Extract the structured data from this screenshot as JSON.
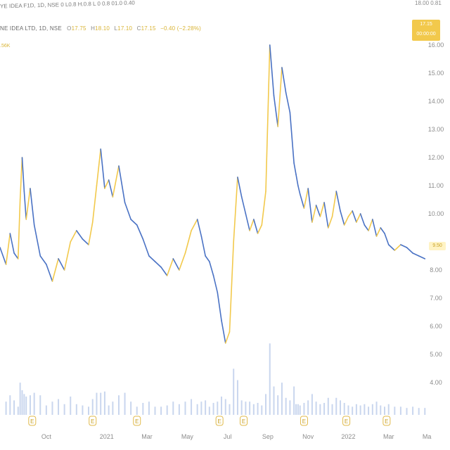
{
  "legend": {
    "symbol": "NE IDEA LTD, 1D, NSE",
    "open_label": "O",
    "open": "17.75",
    "high_label": "H",
    "high": "18.10",
    "low_label": "L",
    "low": "17.10",
    "close_label": "C",
    "close": "17.15",
    "change": "−0.40 (−2.28%)",
    "sub": ".56K"
  },
  "top_strip": "YE IDEA F1D, 1D, NSE 0 L0.8 H.0.8 L 0 0.8 01.0 0.40",
  "top_price": "18.00 0.81",
  "price_badge": {
    "line1": "17.15",
    "line2": "00:00:00"
  },
  "last_badge": "9.50",
  "colors": {
    "up": "#f2c94c",
    "down": "#4a72c4",
    "volume": "#c9d6ee",
    "axis_text": "#8c8c8c"
  },
  "chart_data": {
    "type": "line",
    "title": "",
    "xlabel": "",
    "ylabel": "",
    "ylim": [
      3.6,
      16.6
    ],
    "y_ticks": [
      {
        "value": 16,
        "label": "16.00"
      },
      {
        "value": 15,
        "label": "15.00"
      },
      {
        "value": 14,
        "label": "14.00"
      },
      {
        "value": 13,
        "label": "13.00"
      },
      {
        "value": 12,
        "label": "12.00"
      },
      {
        "value": 11,
        "label": "11.00"
      },
      {
        "value": 10,
        "label": "10.00"
      },
      {
        "value": 8,
        "label": "8.00"
      },
      {
        "value": 7,
        "label": "7.00"
      },
      {
        "value": 6,
        "label": "6.00"
      },
      {
        "value": 5,
        "label": "5.00"
      },
      {
        "value": 4,
        "label": "4.00"
      }
    ],
    "x_ticks": [
      {
        "label": "Oct",
        "at": 1.0
      },
      {
        "label": "2021",
        "at": 4.0
      },
      {
        "label": "Mar",
        "at": 6.0
      },
      {
        "label": "May",
        "at": 8.0
      },
      {
        "label": "Jul",
        "at": 10.0
      },
      {
        "label": "Sep",
        "at": 12.0
      },
      {
        "label": "Nov",
        "at": 14.0
      },
      {
        "label": "2022",
        "at": 16.0
      },
      {
        "label": "Mar",
        "at": 18.0
      },
      {
        "label": "Ma",
        "at": 19.9
      }
    ],
    "x_range": [
      -1.3,
      20.0
    ],
    "events": [
      0.3,
      3.3,
      5.5,
      9.6,
      10.8,
      13.8,
      15.9,
      17.9
    ],
    "event_label": "E",
    "series": [
      {
        "x": [
          -1.3,
          -1.0,
          -0.8,
          -0.6,
          -0.4,
          -0.3,
          -0.2,
          -0.1,
          0.0,
          0.2,
          0.4,
          0.7,
          1.0,
          1.3,
          1.6,
          1.9,
          2.2,
          2.5,
          2.8,
          3.1,
          3.3,
          3.5,
          3.7,
          3.9,
          4.1,
          4.3,
          4.6,
          4.9,
          5.2,
          5.5,
          5.8,
          6.1,
          6.4,
          6.7,
          7.0,
          7.3,
          7.6,
          7.9,
          8.2,
          8.5,
          8.7,
          8.9,
          9.1,
          9.3,
          9.5,
          9.7,
          9.9,
          10.1,
          10.3,
          10.5,
          10.7,
          10.9,
          11.1,
          11.3,
          11.5,
          11.7,
          11.9,
          12.1,
          12.3,
          12.5,
          12.7,
          12.9,
          13.1,
          13.3,
          13.4,
          13.5,
          13.6,
          13.8,
          14.0,
          14.2,
          14.4,
          14.6,
          14.8,
          15.0,
          15.2,
          15.4,
          15.6,
          15.8,
          16.0,
          16.2,
          16.4,
          16.6,
          16.8,
          17.0,
          17.2,
          17.4,
          17.6,
          17.8,
          18.0,
          18.3,
          18.6,
          18.9,
          19.2,
          19.5,
          19.8
        ],
        "values": [
          8.8,
          8.2,
          9.3,
          8.6,
          8.4,
          10.5,
          12.0,
          10.8,
          9.8,
          10.9,
          9.6,
          8.5,
          8.2,
          7.6,
          8.4,
          8.0,
          9.0,
          9.4,
          9.1,
          8.9,
          9.7,
          11.0,
          12.3,
          10.9,
          11.2,
          10.6,
          11.7,
          10.4,
          9.8,
          9.6,
          9.1,
          8.5,
          8.3,
          8.1,
          7.8,
          8.4,
          8.0,
          8.6,
          9.4,
          9.8,
          9.2,
          8.5,
          8.3,
          7.8,
          7.2,
          6.2,
          5.4,
          5.8,
          9.0,
          11.3,
          10.6,
          10.0,
          9.4,
          9.8,
          9.3,
          9.6,
          10.8,
          16.0,
          14.2,
          13.1,
          15.2,
          14.3,
          13.6,
          11.8,
          11.4,
          11.0,
          10.7,
          10.2,
          10.9,
          9.7,
          10.3,
          9.9,
          10.4,
          9.5,
          9.9,
          10.8,
          10.1,
          9.6,
          9.9,
          10.1,
          9.7,
          10.0,
          9.6,
          9.4,
          9.8,
          9.2,
          9.5,
          9.3,
          8.9,
          8.7,
          8.9,
          8.8,
          8.6,
          8.5,
          8.4
        ]
      }
    ]
  }
}
